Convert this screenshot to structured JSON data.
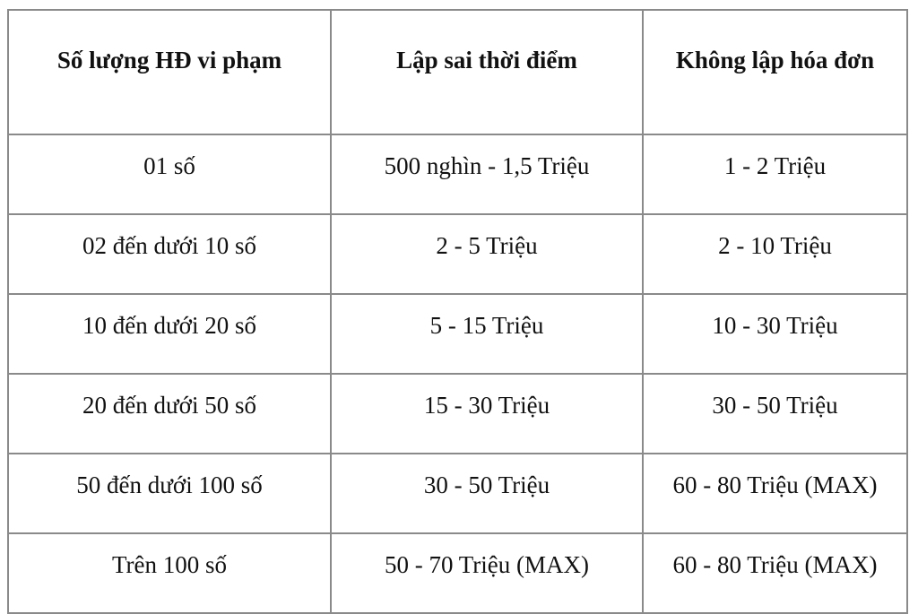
{
  "page": {
    "background_color": "#ffffff",
    "text_color": "#111111",
    "border_outer_color": "#4f4f4f",
    "border_inner_color": "#8a8a8a"
  },
  "table": {
    "headers": [
      "Số lượng HĐ vi phạm",
      "Lập sai thời điểm",
      "Không lập hóa đơn"
    ],
    "rows": [
      [
        "01 số",
        "500 nghìn - 1,5 Triệu",
        "1 - 2 Triệu"
      ],
      [
        "02 đến dưới 10 số",
        "2 - 5 Triệu",
        "2 - 10 Triệu"
      ],
      [
        "10 đến dưới 20 số",
        "5 - 15 Triệu",
        "10 - 30 Triệu"
      ],
      [
        "20 đến dưới 50 số",
        "15 - 30 Triệu",
        "30 - 50 Triệu"
      ],
      [
        "50 đến dưới 100 số",
        "30 - 50 Triệu",
        "60 - 80 Triệu (MAX)"
      ],
      [
        "Trên 100 số",
        "50 - 70 Triệu (MAX)",
        "60 - 80 Triệu (MAX)"
      ]
    ]
  }
}
